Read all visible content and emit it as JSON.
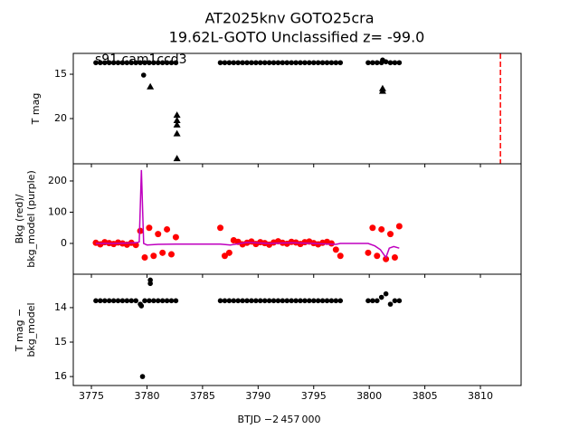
{
  "title": [
    "AT2025knv  GOTO25cra",
    "19.62L-GOTO Unclassified z= -99.0"
  ],
  "chart_data": [
    {
      "type": "scatter",
      "annotation": "s91 cam1ccd3",
      "xlim": [
        3773.37,
        3813.66
      ],
      "ylim": [
        25.1,
        12.65
      ],
      "yticks": [
        15,
        20
      ],
      "ylabel": [
        "T mag"
      ],
      "vline": {
        "x": 3811.8,
        "color": "#ff0000"
      },
      "series": [
        {
          "color": "#000000",
          "marker": "circle",
          "x": [
            3775.4,
            3775.8,
            3776.2,
            3776.6,
            3777.0,
            3777.4,
            3777.8,
            3778.2,
            3778.6,
            3779.0,
            3779.4,
            3779.8,
            3780.2,
            3780.6,
            3781.0,
            3781.4,
            3781.8,
            3782.2,
            3782.6,
            3786.6,
            3787.0,
            3787.4,
            3787.8,
            3788.2,
            3788.6,
            3789.0,
            3789.4,
            3789.8,
            3790.2,
            3790.6,
            3791.0,
            3791.4,
            3791.8,
            3792.2,
            3792.6,
            3793.0,
            3793.4,
            3793.8,
            3794.2,
            3794.6,
            3795.0,
            3795.4,
            3795.8,
            3796.2,
            3796.6,
            3797.0,
            3797.4,
            3799.9,
            3800.3,
            3800.7,
            3801.1,
            3801.5,
            3801.9,
            3802.3,
            3802.7,
            3779.7,
            3801.2
          ],
          "values": [
            13.7,
            13.7,
            13.7,
            13.7,
            13.7,
            13.7,
            13.7,
            13.7,
            13.7,
            13.7,
            13.7,
            13.7,
            13.7,
            13.7,
            13.7,
            13.7,
            13.7,
            13.7,
            13.7,
            13.7,
            13.7,
            13.7,
            13.7,
            13.7,
            13.7,
            13.7,
            13.7,
            13.7,
            13.7,
            13.7,
            13.7,
            13.7,
            13.7,
            13.7,
            13.7,
            13.7,
            13.7,
            13.7,
            13.7,
            13.7,
            13.7,
            13.7,
            13.7,
            13.7,
            13.7,
            13.7,
            13.7,
            13.7,
            13.7,
            13.7,
            13.7,
            13.6,
            13.7,
            13.7,
            13.7,
            15.1,
            13.4
          ]
        },
        {
          "color": "#000000",
          "marker": "triangle",
          "x": [
            3780.3,
            3782.7,
            3782.7,
            3782.7,
            3782.7,
            3782.7,
            3801.2,
            3801.2
          ],
          "values": [
            16.4,
            19.6,
            20.2,
            20.7,
            21.7,
            24.5,
            16.6,
            16.9
          ]
        }
      ]
    },
    {
      "type": "scatter",
      "xlim": [
        3773.37,
        3813.66
      ],
      "ylim": [
        -98.6,
        255
      ],
      "yticks": [
        0,
        100,
        200
      ],
      "ylabel": [
        "Bkg (red)/",
        "bkg_model (purple)"
      ],
      "series": [
        {
          "color": "#ff0000",
          "marker": "circle",
          "x": [
            3775.4,
            3775.8,
            3776.2,
            3776.6,
            3777.0,
            3777.4,
            3777.8,
            3778.2,
            3778.6,
            3779.0,
            3779.4,
            3779.8,
            3780.2,
            3780.6,
            3781.0,
            3781.4,
            3781.8,
            3782.2,
            3782.6,
            3786.6,
            3787.0,
            3787.4,
            3787.8,
            3788.2,
            3788.6,
            3789.0,
            3789.4,
            3789.8,
            3790.2,
            3790.6,
            3791.0,
            3791.4,
            3791.8,
            3792.2,
            3792.6,
            3793.0,
            3793.4,
            3793.8,
            3794.2,
            3794.6,
            3795.0,
            3795.4,
            3795.8,
            3796.2,
            3796.6,
            3797.0,
            3797.4,
            3799.9,
            3800.3,
            3800.7,
            3801.1,
            3801.5,
            3801.9,
            3802.3,
            3802.7
          ],
          "values": [
            2,
            -3,
            4,
            1,
            -2,
            3,
            0,
            -4,
            2,
            -5,
            40,
            -45,
            50,
            -40,
            30,
            -30,
            45,
            -35,
            20,
            50,
            -40,
            -30,
            10,
            5,
            -3,
            2,
            6,
            -2,
            4,
            1,
            -4,
            3,
            7,
            2,
            -1,
            5,
            3,
            -2,
            4,
            6,
            1,
            -3,
            2,
            5,
            0,
            -20,
            -40,
            -30,
            50,
            -40,
            45,
            -50,
            30,
            -45,
            55
          ]
        },
        {
          "color": "#bf00bf",
          "marker": "line",
          "x": [
            3775.4,
            3777.0,
            3779.0,
            3779.3,
            3779.5,
            3779.7,
            3780.0,
            3781.0,
            3782.6,
            3786.6,
            3787.5,
            3789.0,
            3791.0,
            3793.0,
            3795.0,
            3797.0,
            3797.4,
            3799.9,
            3800.5,
            3801.0,
            3801.3,
            3801.5,
            3801.8,
            3802.2,
            3802.7
          ],
          "values": [
            0,
            0,
            2,
            5,
            235,
            0,
            -5,
            -3,
            -2,
            -2,
            -5,
            3,
            0,
            2,
            0,
            -3,
            0,
            0,
            -8,
            -20,
            -35,
            -45,
            -15,
            -10,
            -15
          ]
        }
      ]
    },
    {
      "type": "scatter",
      "xlim": [
        3773.37,
        3813.66
      ],
      "ylim": [
        16.26,
        13.03
      ],
      "yticks": [
        14,
        15,
        16
      ],
      "ylabel": [
        "T mag −",
        "bkg_model"
      ],
      "xlabel": "BTJD −2 457 000",
      "xticks": [
        3775,
        3780,
        3785,
        3790,
        3795,
        3800,
        3805,
        3810
      ],
      "series": [
        {
          "color": "#000000",
          "marker": "circle",
          "x": [
            3775.4,
            3775.8,
            3776.2,
            3776.6,
            3777.0,
            3777.4,
            3777.8,
            3778.2,
            3778.6,
            3779.0,
            3779.4,
            3779.8,
            3780.2,
            3780.6,
            3781.0,
            3781.4,
            3781.8,
            3782.2,
            3782.6,
            3786.6,
            3787.0,
            3787.4,
            3787.8,
            3788.2,
            3788.6,
            3789.0,
            3789.4,
            3789.8,
            3790.2,
            3790.6,
            3791.0,
            3791.4,
            3791.8,
            3792.2,
            3792.6,
            3793.0,
            3793.4,
            3793.8,
            3794.2,
            3794.6,
            3795.0,
            3795.4,
            3795.8,
            3796.2,
            3796.6,
            3797.0,
            3797.4,
            3799.9,
            3800.3,
            3800.7,
            3801.1,
            3801.5,
            3801.9,
            3802.3,
            3802.7,
            3780.3,
            3780.3,
            3779.6,
            3779.5
          ],
          "values": [
            13.8,
            13.8,
            13.8,
            13.8,
            13.8,
            13.8,
            13.8,
            13.8,
            13.8,
            13.8,
            13.9,
            13.8,
            13.8,
            13.8,
            13.8,
            13.8,
            13.8,
            13.8,
            13.8,
            13.8,
            13.8,
            13.8,
            13.8,
            13.8,
            13.8,
            13.8,
            13.8,
            13.8,
            13.8,
            13.8,
            13.8,
            13.8,
            13.8,
            13.8,
            13.8,
            13.8,
            13.8,
            13.8,
            13.8,
            13.8,
            13.8,
            13.8,
            13.8,
            13.8,
            13.8,
            13.8,
            13.8,
            13.8,
            13.8,
            13.8,
            13.7,
            13.6,
            13.9,
            13.8,
            13.8,
            13.2,
            13.3,
            16.0,
            13.95
          ]
        }
      ]
    }
  ]
}
